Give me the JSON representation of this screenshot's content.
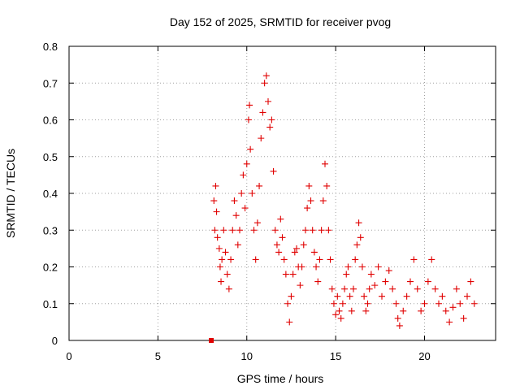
{
  "chart_data": {
    "type": "scatter",
    "title": "Day 152 of 2025, SRMTID for receiver pvog",
    "xlabel": "GPS time / hours",
    "ylabel": "SRMTID / TECUs",
    "xlim": [
      0,
      24
    ],
    "ylim": [
      0,
      0.8
    ],
    "xticks": [
      "0",
      "5",
      "10",
      "15",
      "20"
    ],
    "xtick_values": [
      0,
      5,
      10,
      15,
      20
    ],
    "yticks": [
      "0",
      "0.1",
      "0.2",
      "0.3",
      "0.4",
      "0.5",
      "0.6",
      "0.7",
      "0.8"
    ],
    "ytick_values": [
      0,
      0.1,
      0.2,
      0.3,
      0.4,
      0.5,
      0.6,
      0.7,
      0.8
    ],
    "grid": true,
    "series": [
      {
        "name": "SRMTID",
        "marker": "plus",
        "color": "#e00000",
        "points": [
          [
            8.0,
            0.0
          ],
          [
            8.15,
            0.38
          ],
          [
            8.2,
            0.3
          ],
          [
            8.25,
            0.42
          ],
          [
            8.3,
            0.35
          ],
          [
            8.35,
            0.28
          ],
          [
            8.45,
            0.25
          ],
          [
            8.5,
            0.2
          ],
          [
            8.55,
            0.16
          ],
          [
            8.6,
            0.22
          ],
          [
            8.7,
            0.3
          ],
          [
            8.8,
            0.24
          ],
          [
            8.9,
            0.18
          ],
          [
            9.0,
            0.14
          ],
          [
            9.1,
            0.22
          ],
          [
            9.2,
            0.3
          ],
          [
            9.3,
            0.38
          ],
          [
            9.4,
            0.34
          ],
          [
            9.5,
            0.26
          ],
          [
            9.6,
            0.3
          ],
          [
            9.7,
            0.4
          ],
          [
            9.8,
            0.45
          ],
          [
            9.9,
            0.36
          ],
          [
            10.0,
            0.48
          ],
          [
            10.1,
            0.6
          ],
          [
            10.15,
            0.64
          ],
          [
            10.2,
            0.52
          ],
          [
            10.3,
            0.4
          ],
          [
            10.4,
            0.3
          ],
          [
            10.5,
            0.22
          ],
          [
            10.6,
            0.32
          ],
          [
            10.7,
            0.42
          ],
          [
            10.8,
            0.55
          ],
          [
            10.9,
            0.62
          ],
          [
            11.0,
            0.7
          ],
          [
            11.1,
            0.72
          ],
          [
            11.2,
            0.65
          ],
          [
            11.3,
            0.58
          ],
          [
            11.4,
            0.6
          ],
          [
            11.5,
            0.46
          ],
          [
            11.6,
            0.3
          ],
          [
            11.7,
            0.26
          ],
          [
            11.8,
            0.24
          ],
          [
            11.9,
            0.33
          ],
          [
            12.0,
            0.28
          ],
          [
            12.1,
            0.22
          ],
          [
            12.2,
            0.18
          ],
          [
            12.3,
            0.1
          ],
          [
            12.4,
            0.05
          ],
          [
            12.5,
            0.12
          ],
          [
            12.6,
            0.18
          ],
          [
            12.7,
            0.24
          ],
          [
            12.8,
            0.25
          ],
          [
            12.9,
            0.2
          ],
          [
            13.0,
            0.15
          ],
          [
            13.1,
            0.2
          ],
          [
            13.2,
            0.26
          ],
          [
            13.3,
            0.3
          ],
          [
            13.4,
            0.36
          ],
          [
            13.5,
            0.42
          ],
          [
            13.6,
            0.38
          ],
          [
            13.7,
            0.3
          ],
          [
            13.8,
            0.24
          ],
          [
            13.9,
            0.2
          ],
          [
            14.0,
            0.16
          ],
          [
            14.1,
            0.22
          ],
          [
            14.2,
            0.3
          ],
          [
            14.3,
            0.38
          ],
          [
            14.4,
            0.48
          ],
          [
            14.5,
            0.42
          ],
          [
            14.6,
            0.3
          ],
          [
            14.7,
            0.22
          ],
          [
            14.8,
            0.14
          ],
          [
            14.9,
            0.1
          ],
          [
            15.0,
            0.07
          ],
          [
            15.1,
            0.12
          ],
          [
            15.2,
            0.08
          ],
          [
            15.3,
            0.06
          ],
          [
            15.4,
            0.1
          ],
          [
            15.5,
            0.14
          ],
          [
            15.6,
            0.18
          ],
          [
            15.7,
            0.2
          ],
          [
            15.8,
            0.12
          ],
          [
            15.9,
            0.08
          ],
          [
            16.0,
            0.14
          ],
          [
            16.1,
            0.22
          ],
          [
            16.2,
            0.26
          ],
          [
            16.3,
            0.32
          ],
          [
            16.4,
            0.28
          ],
          [
            16.5,
            0.2
          ],
          [
            16.6,
            0.12
          ],
          [
            16.7,
            0.08
          ],
          [
            16.8,
            0.1
          ],
          [
            16.9,
            0.14
          ],
          [
            17.0,
            0.18
          ],
          [
            17.2,
            0.15
          ],
          [
            17.4,
            0.2
          ],
          [
            17.6,
            0.12
          ],
          [
            17.8,
            0.16
          ],
          [
            18.0,
            0.19
          ],
          [
            18.2,
            0.14
          ],
          [
            18.4,
            0.1
          ],
          [
            18.5,
            0.06
          ],
          [
            18.6,
            0.04
          ],
          [
            18.8,
            0.08
          ],
          [
            19.0,
            0.12
          ],
          [
            19.2,
            0.16
          ],
          [
            19.4,
            0.22
          ],
          [
            19.6,
            0.14
          ],
          [
            19.8,
            0.08
          ],
          [
            20.0,
            0.1
          ],
          [
            20.2,
            0.16
          ],
          [
            20.4,
            0.22
          ],
          [
            20.6,
            0.14
          ],
          [
            20.8,
            0.1
          ],
          [
            21.0,
            0.12
          ],
          [
            21.2,
            0.08
          ],
          [
            21.4,
            0.05
          ],
          [
            21.6,
            0.09
          ],
          [
            21.8,
            0.14
          ],
          [
            22.0,
            0.1
          ],
          [
            22.2,
            0.06
          ],
          [
            22.4,
            0.12
          ],
          [
            22.6,
            0.16
          ],
          [
            22.8,
            0.1
          ]
        ]
      }
    ]
  }
}
